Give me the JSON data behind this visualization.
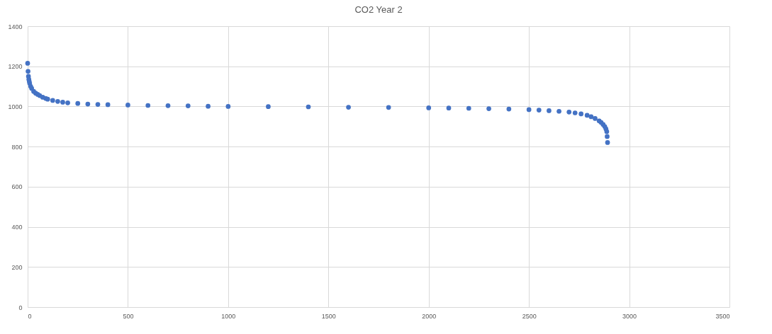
{
  "chart_data": {
    "type": "scatter",
    "title": "CO2 Year 2",
    "marker": "circle",
    "grid": true,
    "x": [
      0,
      2,
      4,
      6,
      8,
      10,
      15,
      20,
      30,
      40,
      50,
      60,
      75,
      90,
      100,
      125,
      150,
      175,
      200,
      250,
      300,
      350,
      400,
      500,
      600,
      700,
      800,
      900,
      1000,
      1200,
      1400,
      1600,
      1800,
      2000,
      2100,
      2200,
      2300,
      2400,
      2500,
      2550,
      2600,
      2650,
      2700,
      2730,
      2760,
      2790,
      2810,
      2830,
      2850,
      2860,
      2870,
      2878,
      2884,
      2888,
      2890,
      2892
    ],
    "series": [
      {
        "color": "#4472c4",
        "values": [
          1215,
          1175,
          1150,
          1135,
          1125,
          1115,
          1100,
          1090,
          1075,
          1066,
          1060,
          1054,
          1046,
          1040,
          1036,
          1030,
          1025,
          1021,
          1018,
          1015,
          1012,
          1010,
          1009,
          1007,
          1005,
          1004,
          1003,
          1001,
          1000,
          999,
          998,
          996,
          995,
          993,
          992,
          991,
          989,
          987,
          984,
          982,
          979,
          976,
          972,
          968,
          963,
          956,
          949,
          940,
          928,
          920,
          910,
          900,
          888,
          875,
          850,
          820
        ]
      }
    ],
    "xlim": [
      0,
      3500
    ],
    "xticks": [
      0,
      500,
      1000,
      1500,
      2000,
      2500,
      3000,
      3500
    ],
    "ylim": [
      0,
      1400
    ],
    "yticks": [
      0,
      200,
      400,
      600,
      800,
      1000,
      1200,
      1400
    ]
  }
}
